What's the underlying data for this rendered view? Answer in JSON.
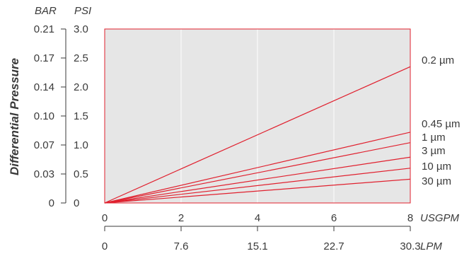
{
  "chart_data": {
    "type": "line",
    "ylabel": "Differential Pressure",
    "y_units": {
      "bar": "BAR",
      "psi": "PSI"
    },
    "psi_ticks": [
      "0",
      "0.5",
      "1.0",
      "1.5",
      "2.0",
      "2.5",
      "3.0"
    ],
    "bar_ticks": [
      "0",
      "0.03",
      "0.07",
      "0.10",
      "0.14",
      "0.17",
      "0.21"
    ],
    "x_units": {
      "usgpm": "USGPM",
      "lpm": "LPM"
    },
    "usgpm_ticks": [
      "0",
      "2",
      "4",
      "6",
      "8"
    ],
    "lpm_ticks": [
      "0",
      "7.6",
      "15.1",
      "22.7",
      "30.3"
    ],
    "xlim": [
      0,
      8
    ],
    "ylim": [
      0,
      3.0
    ],
    "grid": true,
    "colors": {
      "line": "#e0202e",
      "plot_bg": "#e6e6e6",
      "grid": "#ffffff",
      "frame": "#e0202e"
    },
    "series": [
      {
        "name": "0.2 µm",
        "x": [
          0,
          8
        ],
        "y": [
          0,
          2.35
        ]
      },
      {
        "name": "0.45 µm",
        "x": [
          0,
          8
        ],
        "y": [
          0,
          1.22
        ]
      },
      {
        "name": "1 µm",
        "x": [
          0,
          8
        ],
        "y": [
          0,
          1.04
        ]
      },
      {
        "name": "3 µm",
        "x": [
          0,
          8
        ],
        "y": [
          0,
          0.79
        ]
      },
      {
        "name": "10 µm",
        "x": [
          0,
          8
        ],
        "y": [
          0,
          0.6
        ]
      },
      {
        "name": "30 µm",
        "x": [
          0,
          8
        ],
        "y": [
          0,
          0.41
        ]
      }
    ]
  }
}
